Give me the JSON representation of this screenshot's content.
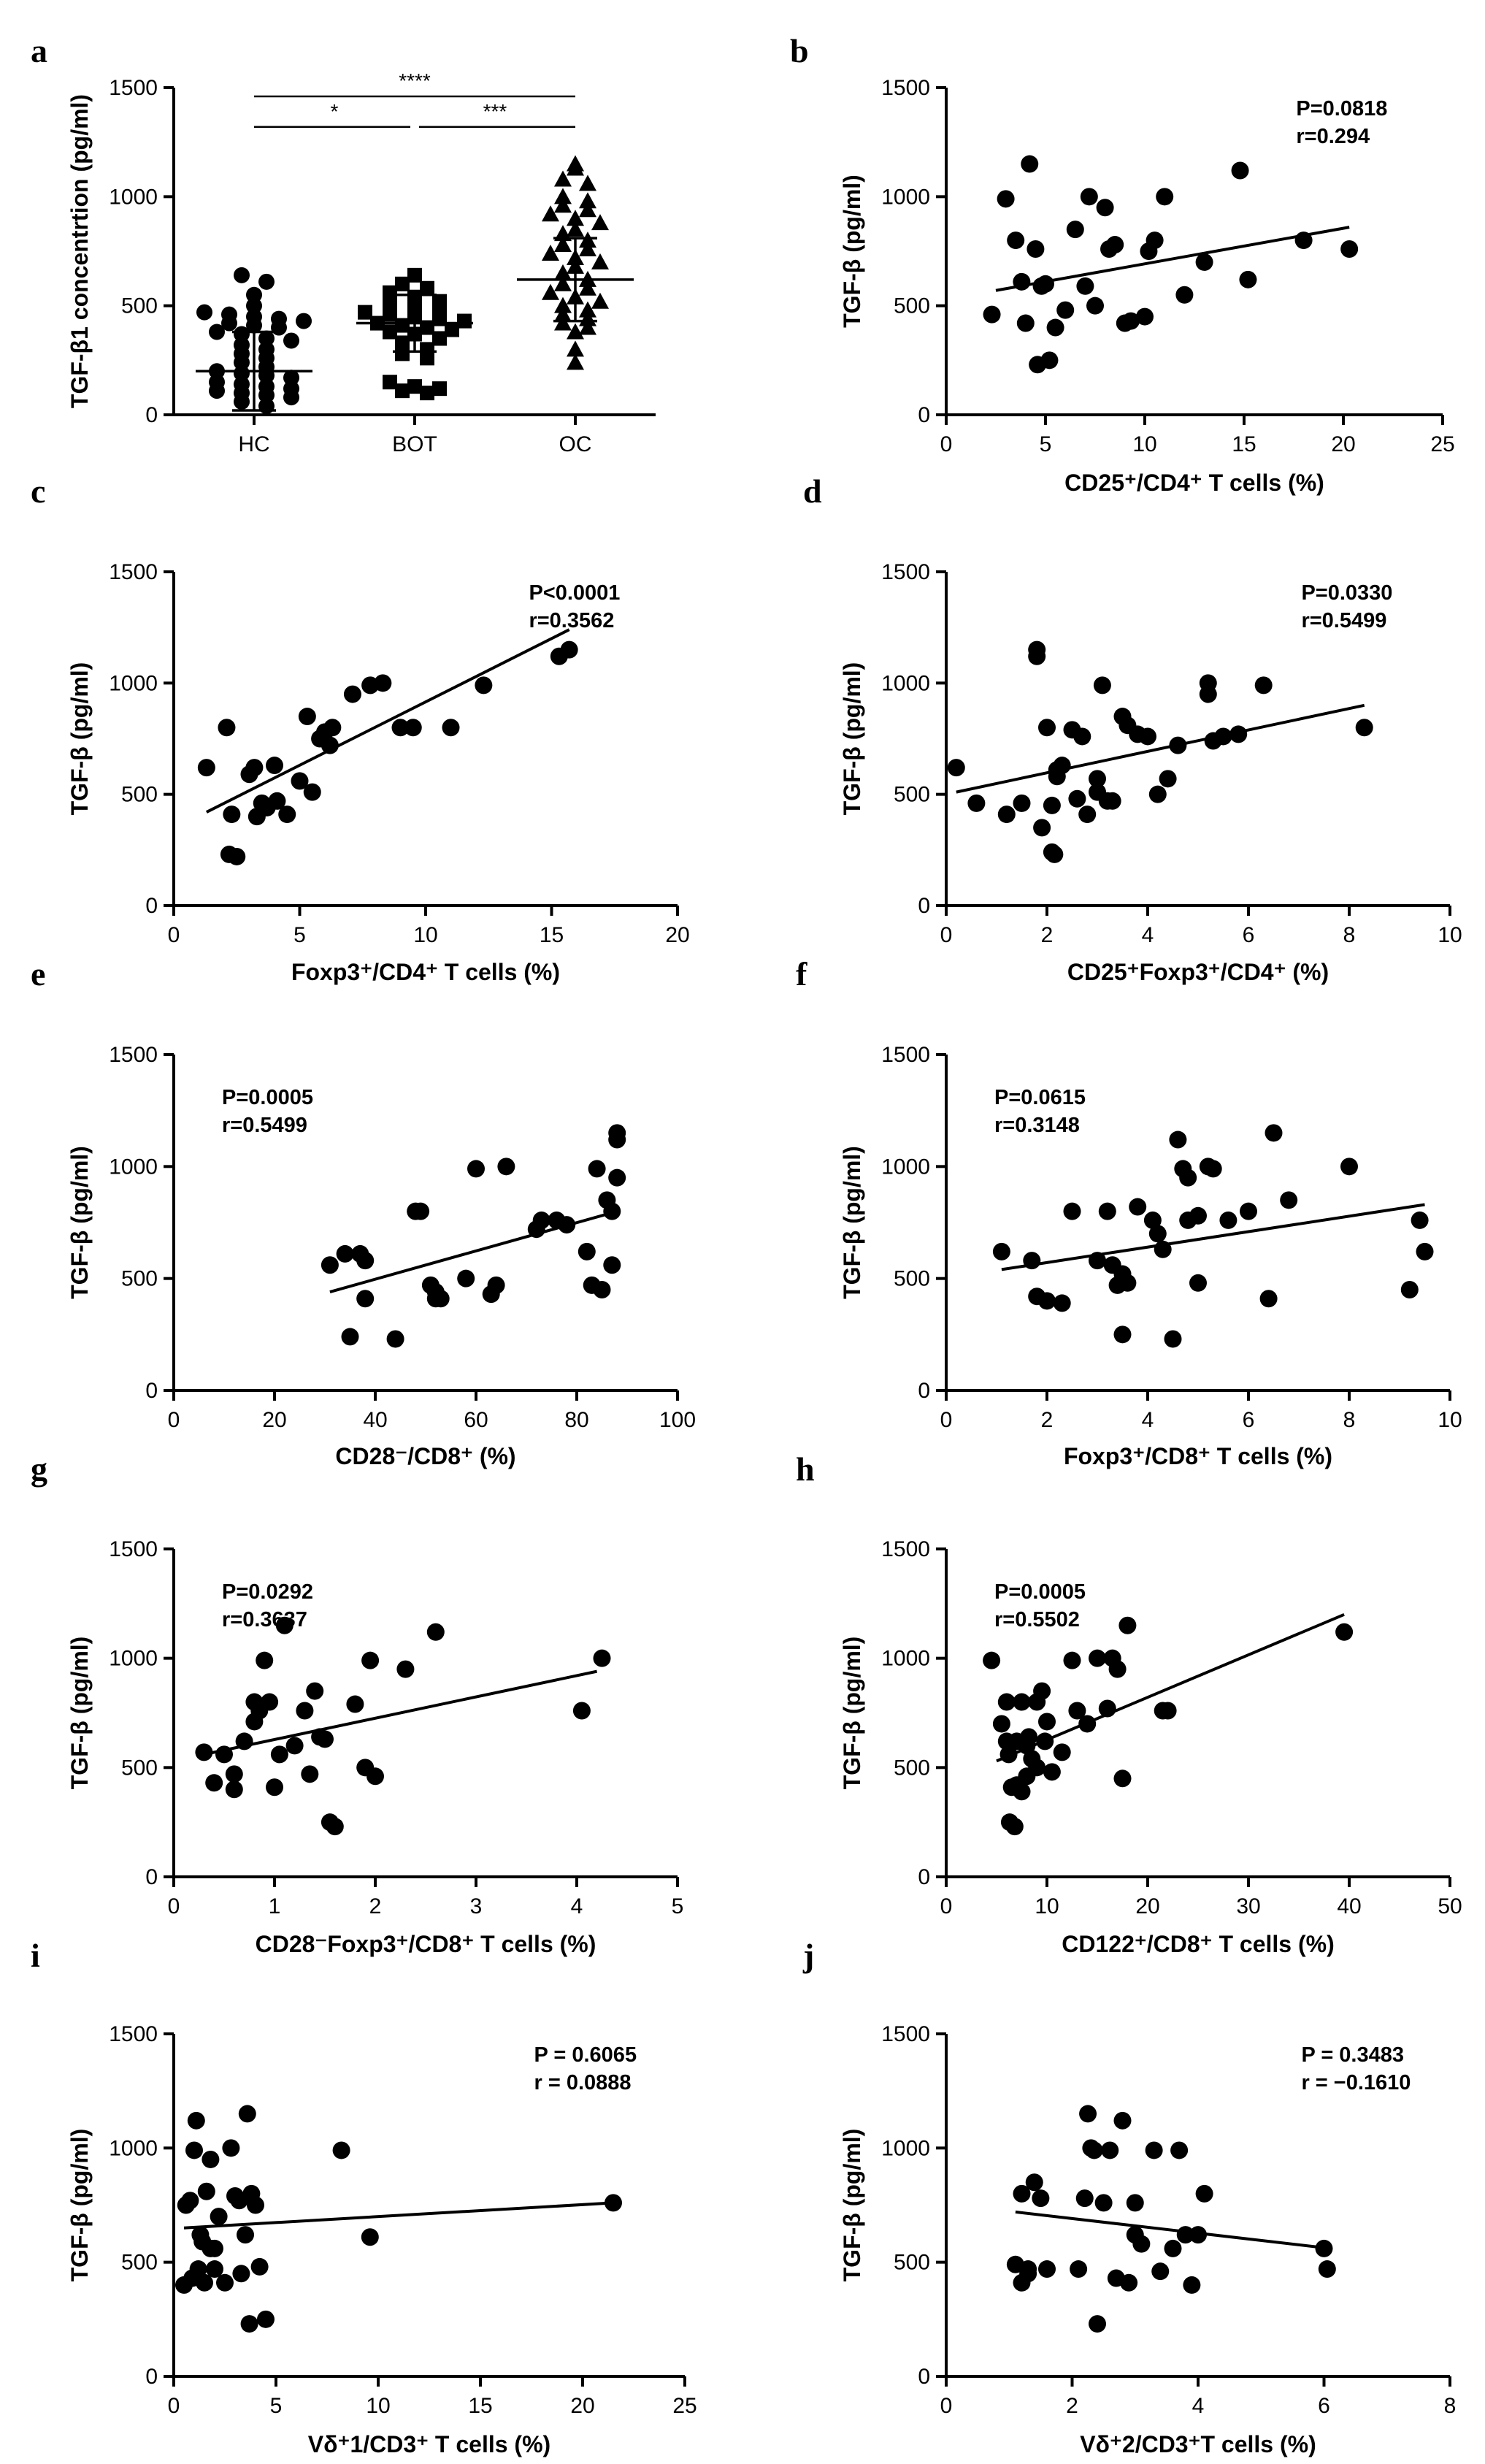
{
  "chart_data": [
    {
      "letter": "a",
      "type": "scatter",
      "xlabel": "",
      "ylabel": "TGF-β1 concentrtion (pg/ml)",
      "xlim": [
        0,
        3
      ],
      "ylim": [
        0,
        1500
      ],
      "yticks": [
        0,
        500,
        1000,
        1500
      ],
      "categories": [
        "HC",
        "BOT",
        "OC"
      ],
      "series": [
        {
          "name": "HC",
          "marker": "circle",
          "mean": 200,
          "sd": 180,
          "values": [
            640,
            610,
            550,
            500,
            470,
            460,
            450,
            440,
            430,
            420,
            410,
            400,
            380,
            370,
            350,
            340,
            320,
            300,
            280,
            260,
            240,
            220,
            200,
            190,
            180,
            170,
            150,
            140,
            130,
            120,
            110,
            100,
            90,
            80,
            60,
            40
          ]
        },
        {
          "name": "BOT",
          "marker": "square",
          "mean": 420,
          "sd": 130,
          "values": [
            640,
            600,
            580,
            560,
            540,
            520,
            500,
            490,
            480,
            470,
            460,
            450,
            440,
            430,
            420,
            410,
            400,
            390,
            380,
            370,
            350,
            330,
            300,
            280,
            260,
            150,
            130,
            120,
            110,
            100
          ]
        },
        {
          "name": "OC",
          "marker": "triangle",
          "mean": 620,
          "sd": 190,
          "values": [
            1150,
            1130,
            1080,
            1060,
            1000,
            980,
            960,
            940,
            920,
            900,
            880,
            850,
            830,
            800,
            780,
            760,
            740,
            720,
            700,
            680,
            650,
            620,
            600,
            580,
            560,
            540,
            520,
            500,
            480,
            460,
            440,
            420,
            400,
            380,
            300,
            240
          ]
        }
      ],
      "significance": [
        {
          "from": "HC",
          "to": "OC",
          "label": "****"
        },
        {
          "from": "HC",
          "to": "BOT",
          "label": "*"
        },
        {
          "from": "BOT",
          "to": "OC",
          "label": "***"
        }
      ]
    },
    {
      "letter": "b",
      "type": "scatter",
      "xlabel": "CD25⁺/CD4⁺ T cells (%)",
      "ylabel": "TGF-β (pg/ml)",
      "xlim": [
        0,
        25
      ],
      "xticks": [
        0,
        5,
        10,
        15,
        20,
        25
      ],
      "ylim": [
        0,
        1500
      ],
      "yticks": [
        0,
        500,
        1000,
        1500
      ],
      "stat_p": "P=0.0818",
      "stat_r": "r=0.294",
      "stat_pos": "top-right",
      "fit": [
        [
          2.5,
          570
        ],
        [
          20.3,
          860
        ]
      ],
      "x": [
        2.3,
        3,
        3.5,
        3.8,
        4.2,
        4.5,
        4.8,
        5,
        5.5,
        4,
        6,
        6.5,
        7,
        7.2,
        7.5,
        8,
        8.2,
        8.5,
        9,
        9.3,
        10,
        10.2,
        10.5,
        11,
        12,
        13,
        14.8,
        15.2,
        18,
        20.3,
        4.6,
        5.2
      ],
      "y": [
        460,
        990,
        800,
        610,
        1150,
        760,
        590,
        600,
        400,
        420,
        480,
        850,
        590,
        1000,
        500,
        950,
        760,
        780,
        420,
        430,
        450,
        750,
        800,
        1000,
        550,
        700,
        1120,
        620,
        800,
        760,
        230,
        250
      ]
    },
    {
      "letter": "c",
      "type": "scatter",
      "xlabel": "Foxp3⁺/CD4⁺ T cells (%)",
      "ylabel": "TGF-β (pg/ml)",
      "xlim": [
        0,
        20
      ],
      "xticks": [
        0,
        5,
        10,
        15,
        20
      ],
      "ylim": [
        0,
        1500
      ],
      "yticks": [
        0,
        500,
        1000,
        1500
      ],
      "stat_p": "P<0.0001",
      "stat_r": "r=0.3562",
      "stat_pos": "top-right",
      "fit": [
        [
          1.3,
          420
        ],
        [
          15.7,
          1240
        ]
      ],
      "x": [
        1.3,
        2.1,
        2.3,
        2.2,
        2.5,
        3,
        3.2,
        3.3,
        3.5,
        3.7,
        4,
        4.1,
        4.5,
        5,
        5.3,
        5.5,
        5.8,
        6,
        6.2,
        6.3,
        7.1,
        7.8,
        8.3,
        9,
        9.5,
        11,
        12.3,
        15.3,
        15.7
      ],
      "y": [
        620,
        800,
        410,
        230,
        220,
        590,
        620,
        400,
        460,
        440,
        630,
        470,
        410,
        560,
        850,
        510,
        750,
        780,
        720,
        800,
        950,
        990,
        1000,
        800,
        800,
        800,
        990,
        1120,
        1150
      ]
    },
    {
      "letter": "d",
      "type": "scatter",
      "xlabel": "CD25⁺Foxp3⁺/CD4⁺ (%)",
      "ylabel": "TGF-β (pg/ml)",
      "xlim": [
        0,
        10
      ],
      "xticks": [
        0,
        2,
        4,
        6,
        8,
        10
      ],
      "ylim": [
        0,
        1500
      ],
      "yticks": [
        0,
        500,
        1000,
        1500
      ],
      "stat_p": "P=0.0330",
      "stat_r": "r=0.5499",
      "stat_pos": "top-right",
      "fit": [
        [
          0.2,
          510
        ],
        [
          8.3,
          900
        ]
      ],
      "x": [
        0.2,
        0.6,
        1.2,
        1.5,
        1.8,
        1.8,
        1.9,
        2,
        2.1,
        2.2,
        2.2,
        2.3,
        2.5,
        2.6,
        2.7,
        2.8,
        3,
        3,
        3.1,
        3.2,
        3.3,
        3.5,
        3.6,
        3.8,
        4,
        4.2,
        4.4,
        4.6,
        5.2,
        5.2,
        5.3,
        5.5,
        5.8,
        6.3,
        8.3,
        2.1,
        2.15
      ],
      "y": [
        620,
        460,
        410,
        460,
        1150,
        1120,
        350,
        800,
        450,
        610,
        580,
        630,
        790,
        480,
        760,
        410,
        510,
        570,
        990,
        470,
        470,
        850,
        810,
        770,
        760,
        500,
        570,
        720,
        950,
        1000,
        740,
        760,
        770,
        990,
        800,
        240,
        230
      ]
    },
    {
      "letter": "e",
      "type": "scatter",
      "xlabel": "CD28⁻/CD8⁺ (%)",
      "ylabel": "TGF-β (pg/ml)",
      "xlim": [
        0,
        100
      ],
      "xticks": [
        0,
        20,
        40,
        60,
        80,
        100
      ],
      "ylim": [
        0,
        1500
      ],
      "yticks": [
        0,
        500,
        1000,
        1500
      ],
      "stat_p": "P=0.0005",
      "stat_r": "r=0.5499",
      "stat_pos": "top-left",
      "fit": [
        [
          31,
          440
        ],
        [
          88,
          800
        ]
      ],
      "x": [
        31,
        34,
        35,
        37,
        38,
        38,
        44,
        48,
        49,
        51,
        52,
        52,
        53,
        58,
        60,
        63,
        64,
        66,
        72,
        73,
        76,
        78,
        82,
        83,
        84,
        85,
        86,
        87,
        87,
        88,
        88,
        88
      ],
      "y": [
        560,
        610,
        240,
        610,
        580,
        410,
        230,
        800,
        800,
        470,
        410,
        440,
        410,
        500,
        990,
        430,
        470,
        1000,
        720,
        760,
        760,
        740,
        620,
        470,
        990,
        450,
        850,
        800,
        560,
        1150,
        1120,
        950
      ]
    },
    {
      "letter": "f",
      "type": "scatter",
      "xlabel": "Foxp3⁺/CD8⁺ T cells (%)",
      "ylabel": "TGF-β (pg/ml)",
      "xlim": [
        0,
        10
      ],
      "xticks": [
        0,
        2,
        4,
        6,
        8,
        10
      ],
      "ylim": [
        0,
        1500
      ],
      "yticks": [
        0,
        500,
        1000,
        1500
      ],
      "stat_p": "P=0.0615",
      "stat_r": "r=0.3148",
      "stat_pos": "top-left",
      "fit": [
        [
          1.1,
          540
        ],
        [
          9.5,
          830
        ]
      ],
      "x": [
        1.1,
        1.7,
        1.8,
        2,
        2.3,
        2.5,
        3,
        3.2,
        3.3,
        3.4,
        3.5,
        3.5,
        3.6,
        3.8,
        4.1,
        4.2,
        4.3,
        4.5,
        4.6,
        4.7,
        4.8,
        4.8,
        5,
        5,
        5.2,
        5.3,
        5.6,
        6,
        6.4,
        6.5,
        6.8,
        8,
        9.2,
        9.4,
        9.5
      ],
      "y": [
        620,
        580,
        420,
        400,
        390,
        800,
        580,
        800,
        560,
        470,
        520,
        250,
        480,
        820,
        760,
        700,
        630,
        230,
        1120,
        990,
        950,
        760,
        480,
        780,
        1000,
        990,
        760,
        800,
        410,
        1150,
        850,
        1000,
        450,
        760,
        620
      ]
    },
    {
      "letter": "g",
      "type": "scatter",
      "xlabel": "CD28⁻Foxp3⁺/CD8⁺ T cells (%)",
      "ylabel": "TGF-β (pg/ml)",
      "xlim": [
        0,
        5
      ],
      "xticks": [
        0,
        1,
        2,
        3,
        4,
        5
      ],
      "ylim": [
        0,
        1500
      ],
      "yticks": [
        0,
        500,
        1000,
        1500
      ],
      "stat_p": "P=0.0292",
      "stat_r": "r=0.3637",
      "stat_pos": "top-left",
      "fit": [
        [
          0.3,
          560
        ],
        [
          4.2,
          940
        ]
      ],
      "x": [
        0.3,
        0.4,
        0.5,
        0.6,
        0.6,
        0.7,
        0.8,
        0.8,
        0.85,
        0.9,
        0.95,
        1.0,
        1.05,
        1.1,
        1.2,
        1.3,
        1.35,
        1.4,
        1.45,
        1.5,
        1.55,
        1.6,
        1.8,
        1.9,
        1.95,
        2.0,
        2.3,
        2.6,
        4.05,
        4.25
      ],
      "y": [
        570,
        430,
        560,
        400,
        470,
        620,
        710,
        800,
        760,
        990,
        800,
        410,
        560,
        1150,
        600,
        760,
        470,
        850,
        640,
        630,
        250,
        230,
        790,
        500,
        990,
        460,
        950,
        1120,
        760,
        1000
      ]
    },
    {
      "letter": "h",
      "type": "scatter",
      "xlabel": "CD122⁺/CD8⁺ T cells (%)",
      "ylabel": "TGF-β (pg/ml)",
      "xlim": [
        0,
        50
      ],
      "xticks": [
        0,
        10,
        20,
        30,
        40,
        50
      ],
      "ylim": [
        0,
        1500
      ],
      "yticks": [
        0,
        500,
        1000,
        1500
      ],
      "stat_p": "P=0.0005",
      "stat_r": "r=0.5502",
      "stat_pos": "top-left",
      "fit": [
        [
          5,
          530
        ],
        [
          39.5,
          1200
        ]
      ],
      "x": [
        4.5,
        5.5,
        6,
        6,
        6.2,
        6.5,
        7,
        7,
        7.5,
        7.5,
        8,
        8,
        8.2,
        8.5,
        9,
        9,
        9.5,
        9.8,
        10,
        10.5,
        11.5,
        12.5,
        13,
        14,
        15,
        16,
        16.5,
        17,
        17.5,
        18,
        21.5,
        22,
        39.5,
        6.3,
        6.8
      ],
      "y": [
        990,
        700,
        620,
        800,
        560,
        410,
        620,
        420,
        390,
        800,
        600,
        460,
        640,
        540,
        500,
        800,
        850,
        620,
        710,
        480,
        570,
        990,
        760,
        700,
        1000,
        770,
        1000,
        950,
        450,
        1150,
        760,
        760,
        1120,
        250,
        230
      ]
    },
    {
      "letter": "i",
      "type": "scatter",
      "xlabel": "Vδ⁺1/CD3⁺ T cells (%)",
      "ylabel": "TGF-β (pg/ml)",
      "xlim": [
        0,
        25
      ],
      "xticks": [
        0,
        5,
        10,
        15,
        20,
        25
      ],
      "ylim": [
        0,
        1500
      ],
      "yticks": [
        0,
        500,
        1000,
        1500
      ],
      "stat_p": "P = 0.6065",
      "stat_r": "r = 0.0888",
      "stat_pos": "top-right",
      "fit": [
        [
          0.5,
          650
        ],
        [
          21.5,
          760
        ]
      ],
      "x": [
        0.5,
        0.6,
        0.8,
        1,
        1.1,
        1.2,
        1.3,
        1.5,
        1.6,
        1.8,
        1.8,
        2,
        2.2,
        2.5,
        2.8,
        3,
        3.2,
        3.3,
        3.5,
        3.6,
        3.7,
        3.8,
        4,
        4.2,
        4.5,
        8.2,
        9.6,
        21.5,
        0.9,
        2.0,
        1.4
      ],
      "y": [
        400,
        750,
        770,
        990,
        1120,
        470,
        620,
        410,
        810,
        560,
        950,
        560,
        700,
        410,
        1000,
        790,
        770,
        450,
        620,
        1150,
        230,
        800,
        750,
        480,
        250,
        990,
        610,
        760,
        430,
        470,
        590
      ]
    },
    {
      "letter": "j",
      "type": "scatter",
      "xlabel": "Vδ⁺2/CD3⁺T cells (%)",
      "ylabel": "TGF-β (pg/ml)",
      "xlim": [
        0,
        8
      ],
      "xticks": [
        0,
        2,
        4,
        6,
        8
      ],
      "ylim": [
        0,
        1500
      ],
      "yticks": [
        0,
        500,
        1000,
        1500
      ],
      "stat_p": "P = 0.3483",
      "stat_r": "r = −0.1610",
      "stat_pos": "top-right",
      "fit": [
        [
          1.1,
          720
        ],
        [
          6.1,
          560
        ]
      ],
      "x": [
        1.1,
        1.2,
        1.2,
        1.3,
        1.4,
        1.5,
        1.6,
        2.1,
        2.2,
        2.25,
        2.3,
        2.4,
        2.5,
        2.6,
        2.7,
        2.8,
        2.9,
        3.0,
        3.0,
        3.1,
        3.3,
        3.4,
        3.6,
        3.7,
        3.8,
        3.9,
        4.0,
        4.1,
        6.0,
        6.05,
        2.35,
        1.3
      ],
      "y": [
        490,
        410,
        800,
        470,
        850,
        780,
        470,
        470,
        780,
        1150,
        1000,
        230,
        760,
        990,
        430,
        1120,
        410,
        760,
        620,
        580,
        990,
        460,
        560,
        990,
        620,
        400,
        620,
        800,
        560,
        470,
        990,
        450
      ]
    }
  ]
}
